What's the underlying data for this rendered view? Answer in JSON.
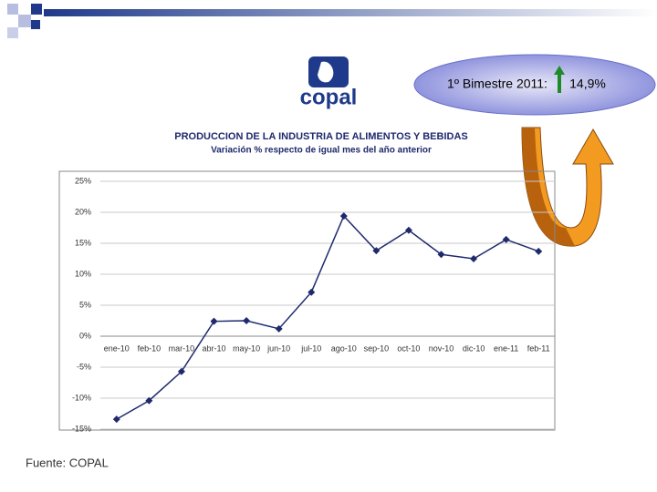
{
  "chart_data": {
    "type": "line",
    "title": "PRODUCCION DE LA INDUSTRIA DE ALIMENTOS Y BEBIDAS",
    "subtitle": "Variación % respecto de igual mes del año anterior",
    "categories": [
      "ene-10",
      "feb-10",
      "mar-10",
      "abr-10",
      "may-10",
      "jun-10",
      "jul-10",
      "ago-10",
      "sep-10",
      "oct-10",
      "nov-10",
      "dic-10",
      "ene-11",
      "feb-11"
    ],
    "values": [
      -13.4,
      -10.4,
      -5.7,
      2.4,
      2.5,
      1.2,
      7.1,
      19.4,
      13.8,
      17.1,
      13.2,
      12.5,
      15.6,
      13.7
    ],
    "color": "#1f2a6e",
    "ylim": [
      -15,
      25
    ],
    "yticks": [
      {
        "value": -15,
        "label": "-15%"
      },
      {
        "value": -10,
        "label": "-10%"
      },
      {
        "value": -5,
        "label": "-5%"
      },
      {
        "value": 0,
        "label": "0%"
      },
      {
        "value": 5,
        "label": "5%"
      },
      {
        "value": 10,
        "label": "10%"
      },
      {
        "value": 15,
        "label": "15%"
      },
      {
        "value": 20,
        "label": "20%"
      },
      {
        "value": 25,
        "label": "25%"
      }
    ],
    "grid": true
  },
  "slide": {
    "logo": "copal",
    "callout_label": "1º Bimestre 2011:",
    "callout_value": "14,9%",
    "source": "Fuente: COPAL"
  }
}
